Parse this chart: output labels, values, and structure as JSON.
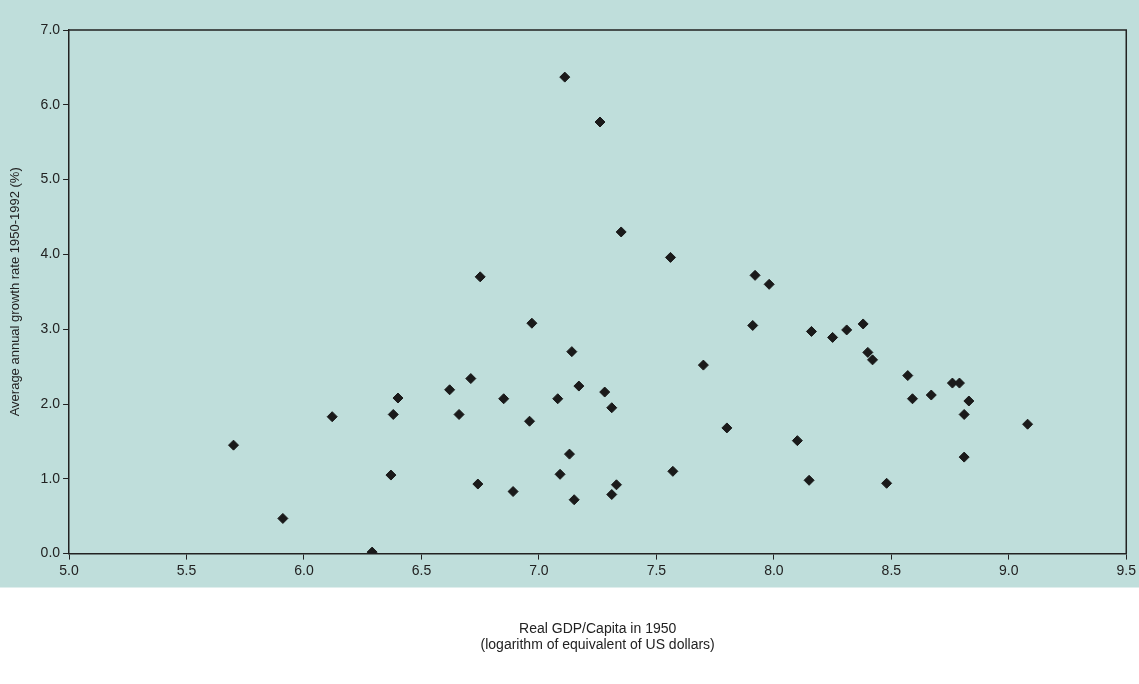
{
  "chart_data": {
    "type": "scatter",
    "xlabel": "Real GDP/Capita in 1950\n(logarithm of equivalent of US dollars)",
    "ylabel": "Average annual growth rate 1950-1992 (%)",
    "xlim": [
      5.0,
      9.5
    ],
    "xticks": [
      {
        "value": 5,
        "label": "5.0"
      },
      {
        "value": 5.5,
        "label": "5.5"
      },
      {
        "value": 6,
        "label": "6.0"
      },
      {
        "value": 6.5,
        "label": "6.5"
      },
      {
        "value": 7,
        "label": "7.0"
      },
      {
        "value": 7.5,
        "label": "7.5"
      },
      {
        "value": 8,
        "label": "8.0"
      },
      {
        "value": 8.5,
        "label": "8.5"
      },
      {
        "value": 9,
        "label": "9.0"
      },
      {
        "value": 9.5,
        "label": "9.5"
      }
    ],
    "ylim": [
      0.0,
      7.0
    ],
    "yticks": [
      {
        "value": 0,
        "label": "0.0"
      },
      {
        "value": 1,
        "label": "1.0"
      },
      {
        "value": 2,
        "label": "2.0"
      },
      {
        "value": 3,
        "label": "3.0"
      },
      {
        "value": 4,
        "label": "4.0"
      },
      {
        "value": 5,
        "label": "5.0"
      },
      {
        "value": 6,
        "label": "6.0"
      },
      {
        "value": 7,
        "label": "7.0"
      }
    ],
    "grid": false,
    "legend": false,
    "marker": "diamond",
    "x": [
      7.11,
      7.26,
      6.75,
      6.97,
      7.14,
      6.71,
      6.62,
      6.4,
      6.38,
      6.12,
      6.66,
      6.85,
      7.08,
      7.17,
      7.28,
      6.96,
      5.7,
      7.13,
      6.37,
      7.09,
      6.74,
      6.89,
      7.15,
      5.91,
      6.29,
      7.35,
      7.56,
      7.92,
      7.98,
      7.91,
      8.16,
      8.25,
      8.31,
      8.38,
      8.4,
      8.42,
      7.7,
      8.57,
      8.59,
      8.67,
      8.76,
      8.79,
      8.83,
      8.81,
      9.08,
      7.31,
      7.8,
      8.1,
      8.81,
      7.57,
      7.33,
      7.31,
      8.15,
      8.48
    ],
    "series": [
      {
        "color": "#1a1a1a",
        "values": [
          6.37,
          5.77,
          3.7,
          3.08,
          2.7,
          2.34,
          2.19,
          2.08,
          1.86,
          1.83,
          1.86,
          2.07,
          2.07,
          2.24,
          2.16,
          1.77,
          1.45,
          1.33,
          1.05,
          1.06,
          0.93,
          0.83,
          0.72,
          0.47,
          0.02,
          4.3,
          3.96,
          3.72,
          3.6,
          3.05,
          2.97,
          2.89,
          2.99,
          3.07,
          2.69,
          2.59,
          2.52,
          2.38,
          2.07,
          2.12,
          2.28,
          2.28,
          2.04,
          1.86,
          1.73,
          1.95,
          1.68,
          1.51,
          1.29,
          1.1,
          0.92,
          0.79,
          0.98,
          0.94
        ]
      }
    ]
  }
}
